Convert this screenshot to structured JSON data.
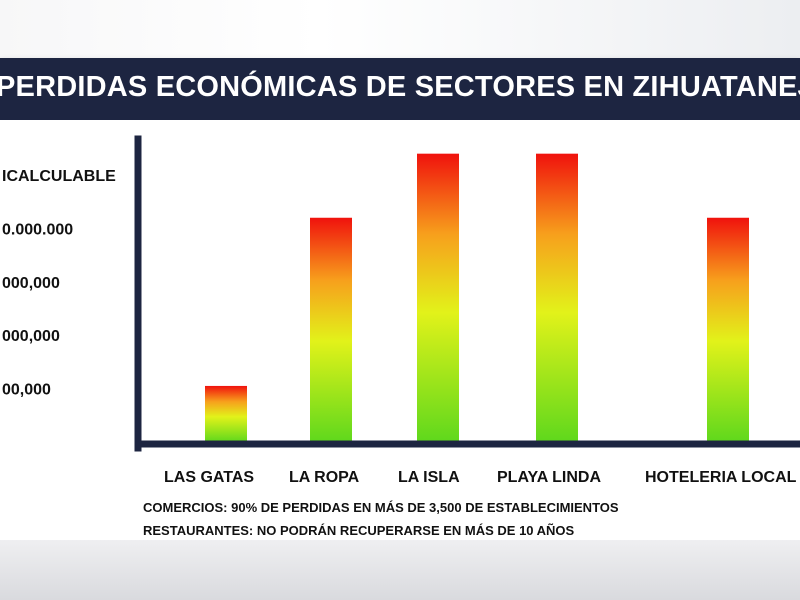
{
  "chart_data": {
    "type": "bar",
    "title": "PERDIDAS ECONÓMICAS DE SECTORES EN ZIHUATANEJO",
    "categories": [
      "LAS GATAS",
      "LA ROPA",
      "LA ISLA",
      "PLAYA LINDA",
      "HOTELERIA LOCAL"
    ],
    "ytick_labels": [
      "00,000",
      "000,000",
      "000,000",
      "0.000.000",
      "ICALCULABLE"
    ],
    "ytick_levels": [
      1,
      2,
      3,
      4,
      5
    ],
    "values": [
      1.05,
      4.2,
      5.4,
      5.4,
      4.2
    ],
    "ylim": [
      0,
      5.6
    ],
    "gradient": [
      "#5fd81c",
      "#e2f21a",
      "#f7a01c",
      "#f0120d"
    ],
    "axis_color": "#1d2541",
    "grid": false,
    "legend": "none"
  },
  "notes": [
    "COMERCIOS: 90% DE PERDIDAS EN MÁS DE 3,500 DE ESTABLECIMIENTOS",
    "RESTAURANTES: NO PODRÁN RECUPERARSE EN MÁS DE 10 AÑOS"
  ]
}
